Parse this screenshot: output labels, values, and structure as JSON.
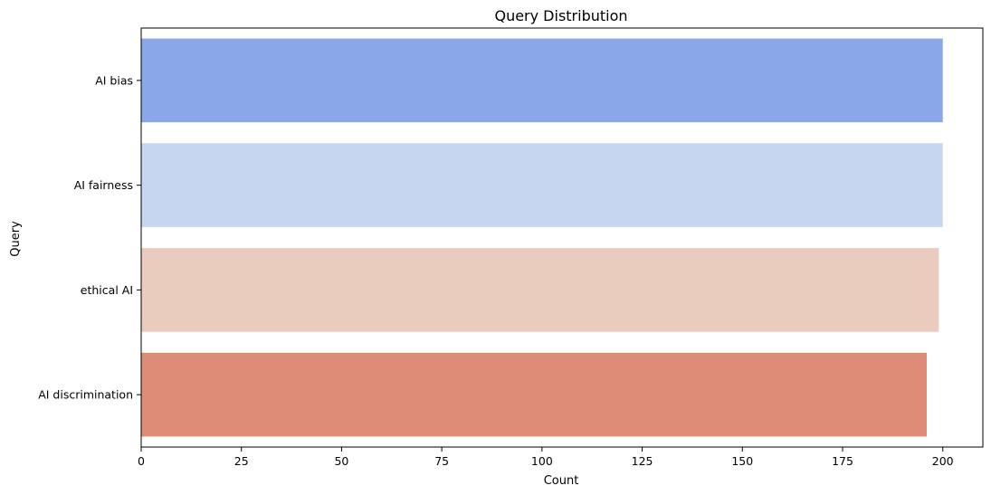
{
  "chart_data": {
    "type": "bar",
    "orientation": "horizontal",
    "title": "Query Distribution",
    "xlabel": "Count",
    "ylabel": "Query",
    "categories": [
      "AI bias",
      "AI fairness",
      "ethical AI",
      "AI discrimination"
    ],
    "values": [
      200,
      200,
      199,
      196
    ],
    "colors": [
      "#8aa7ea",
      "#c6d5f0",
      "#eaccbf",
      "#dd8c77"
    ],
    "xlim": [
      0,
      210
    ],
    "xticks": [
      0,
      25,
      50,
      75,
      100,
      125,
      150,
      175,
      200
    ],
    "grid": false,
    "legend": "none"
  }
}
